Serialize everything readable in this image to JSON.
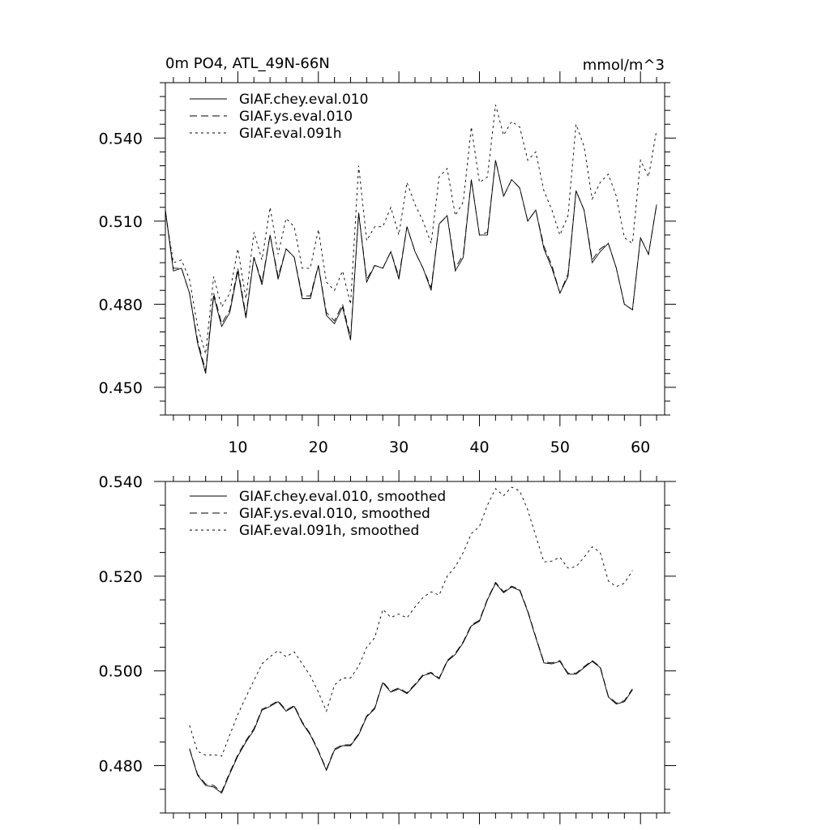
{
  "chart_data": [
    {
      "type": "line",
      "title_left": "0m PO4, ATL_49N-66N",
      "title_right": "mmol/m^3",
      "xlim": [
        1,
        63
      ],
      "ylim": [
        0.44,
        0.56
      ],
      "x_ticks": [
        10,
        20,
        30,
        40,
        50,
        60
      ],
      "y_ticks": [
        0.45,
        0.48,
        0.51,
        0.54
      ],
      "y_tick_labels": [
        "0.450",
        "0.480",
        "0.510",
        "0.540"
      ],
      "legend_position": "top-left",
      "series": [
        {
          "name": "GIAF.chey.eval.010",
          "style": "solid",
          "x_start": 1,
          "values": [
            0.514,
            0.492,
            0.493,
            0.484,
            0.466,
            0.455,
            0.483,
            0.472,
            0.477,
            0.492,
            0.475,
            0.497,
            0.487,
            0.505,
            0.489,
            0.5,
            0.497,
            0.482,
            0.482,
            0.494,
            0.476,
            0.473,
            0.479,
            0.467,
            0.513,
            0.488,
            0.494,
            0.493,
            0.499,
            0.489,
            0.508,
            0.499,
            0.493,
            0.485,
            0.509,
            0.512,
            0.492,
            0.497,
            0.525,
            0.505,
            0.505,
            0.532,
            0.519,
            0.525,
            0.522,
            0.51,
            0.514,
            0.5,
            0.493,
            0.484,
            0.49,
            0.521,
            0.514,
            0.495,
            0.499,
            0.502,
            0.493,
            0.48,
            0.478,
            0.504,
            0.498,
            0.516
          ]
        },
        {
          "name": "GIAF.ys.eval.010",
          "style": "dashed",
          "x_start": 1,
          "values": [
            0.514,
            0.493,
            0.493,
            0.484,
            0.467,
            0.456,
            0.484,
            0.473,
            0.478,
            0.493,
            0.476,
            0.497,
            0.488,
            0.505,
            0.49,
            0.5,
            0.497,
            0.483,
            0.483,
            0.494,
            0.477,
            0.474,
            0.48,
            0.468,
            0.513,
            0.489,
            0.494,
            0.493,
            0.499,
            0.49,
            0.508,
            0.499,
            0.493,
            0.486,
            0.509,
            0.512,
            0.493,
            0.498,
            0.525,
            0.505,
            0.506,
            0.532,
            0.519,
            0.525,
            0.522,
            0.51,
            0.514,
            0.501,
            0.494,
            0.484,
            0.491,
            0.521,
            0.514,
            0.496,
            0.5,
            0.502,
            0.493,
            0.48,
            0.478,
            0.504,
            0.498,
            0.516
          ]
        },
        {
          "name": "GIAF.eval.091h",
          "style": "dotted",
          "x_start": 1,
          "values": [
            0.513,
            0.495,
            0.496,
            0.489,
            0.472,
            0.462,
            0.49,
            0.479,
            0.484,
            0.5,
            0.482,
            0.506,
            0.496,
            0.515,
            0.498,
            0.511,
            0.508,
            0.493,
            0.493,
            0.507,
            0.488,
            0.485,
            0.492,
            0.48,
            0.53,
            0.503,
            0.508,
            0.508,
            0.515,
            0.505,
            0.524,
            0.516,
            0.51,
            0.502,
            0.526,
            0.529,
            0.512,
            0.517,
            0.544,
            0.524,
            0.526,
            0.552,
            0.541,
            0.546,
            0.544,
            0.532,
            0.535,
            0.521,
            0.514,
            0.505,
            0.512,
            0.545,
            0.537,
            0.518,
            0.524,
            0.527,
            0.519,
            0.504,
            0.502,
            0.532,
            0.526,
            0.543
          ]
        }
      ]
    },
    {
      "type": "line",
      "xlim": [
        1,
        63
      ],
      "ylim": [
        0.47,
        0.54
      ],
      "x_ticks": [
        10,
        20,
        30,
        40,
        50,
        60
      ],
      "y_ticks": [
        0.48,
        0.5,
        0.52,
        0.54
      ],
      "y_tick_labels": [
        "0.480",
        "0.500",
        "0.520",
        "0.540"
      ],
      "legend_position": "top-left",
      "series": [
        {
          "name": "GIAF.chey.eval.010, smoothed",
          "style": "solid",
          "x_start": 4,
          "values": [
            0.4835,
            0.478,
            0.4758,
            0.4755,
            0.4742,
            0.4783,
            0.482,
            0.485,
            0.4875,
            0.4917,
            0.4925,
            0.4935,
            0.4915,
            0.4925,
            0.489,
            0.4865,
            0.483,
            0.479,
            0.4833,
            0.4842,
            0.4842,
            0.4865,
            0.4903,
            0.492,
            0.4975,
            0.4955,
            0.4962,
            0.4952,
            0.497,
            0.499,
            0.4995,
            0.4983,
            0.502,
            0.5035,
            0.506,
            0.5095,
            0.5105,
            0.515,
            0.5185,
            0.5165,
            0.5177,
            0.517,
            0.5125,
            0.507,
            0.5017,
            0.5015,
            0.502,
            0.4993,
            0.4993,
            0.5007,
            0.502,
            0.5007,
            0.4945,
            0.493,
            0.4935,
            0.496
          ]
        },
        {
          "name": "GIAF.ys.eval.010, smoothed",
          "style": "dashed",
          "x_start": 4,
          "values": [
            0.4836,
            0.4782,
            0.4761,
            0.4758,
            0.4745,
            0.4786,
            0.4823,
            0.4853,
            0.4878,
            0.4919,
            0.4927,
            0.4937,
            0.4917,
            0.4927,
            0.4892,
            0.4867,
            0.4832,
            0.4792,
            0.4835,
            0.4844,
            0.4844,
            0.4867,
            0.4905,
            0.4922,
            0.4977,
            0.4957,
            0.4964,
            0.4954,
            0.4972,
            0.4992,
            0.4997,
            0.4985,
            0.5022,
            0.5037,
            0.5062,
            0.5097,
            0.5107,
            0.5152,
            0.5187,
            0.5167,
            0.5179,
            0.5172,
            0.5127,
            0.5072,
            0.5019,
            0.5017,
            0.5022,
            0.4995,
            0.4995,
            0.5009,
            0.5022,
            0.5009,
            0.4947,
            0.4932,
            0.4937,
            0.4962
          ]
        },
        {
          "name": "GIAF.eval.091h, smoothed",
          "style": "dotted",
          "x_start": 4,
          "values": [
            0.4885,
            0.483,
            0.4822,
            0.4823,
            0.482,
            0.4865,
            0.4908,
            0.4945,
            0.498,
            0.5015,
            0.503,
            0.5043,
            0.503,
            0.504,
            0.5015,
            0.499,
            0.4955,
            0.4915,
            0.497,
            0.4985,
            0.4985,
            0.501,
            0.505,
            0.507,
            0.513,
            0.5113,
            0.512,
            0.5112,
            0.5135,
            0.5155,
            0.5167,
            0.516,
            0.52,
            0.522,
            0.525,
            0.529,
            0.5305,
            0.535,
            0.5385,
            0.537,
            0.5388,
            0.538,
            0.534,
            0.5285,
            0.523,
            0.5232,
            0.524,
            0.5217,
            0.522,
            0.524,
            0.5262,
            0.525,
            0.519,
            0.5178,
            0.5185,
            0.5212
          ]
        }
      ]
    }
  ]
}
